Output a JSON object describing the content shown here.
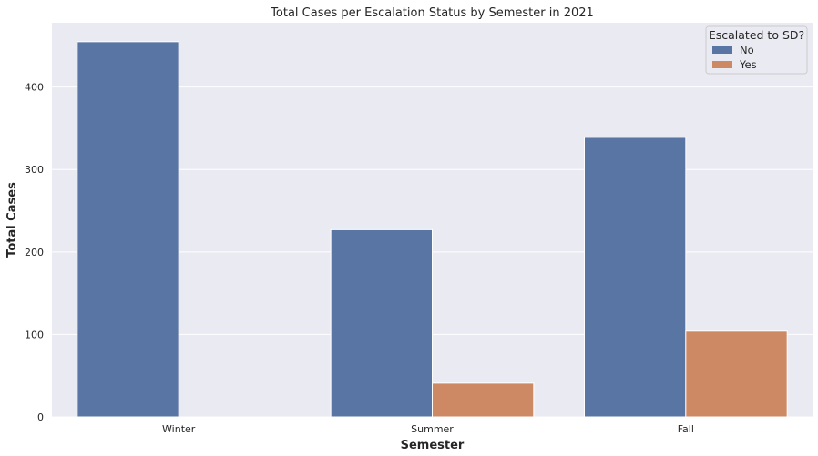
{
  "chart_data": {
    "type": "bar",
    "title": "Total Cases per Escalation Status by Semester in 2021",
    "xlabel": "Semester",
    "ylabel": "Total Cases",
    "categories": [
      "Winter",
      "Summer",
      "Fall"
    ],
    "series": [
      {
        "name": "No",
        "values": [
          455,
          227,
          339
        ],
        "color": "#5875a4"
      },
      {
        "name": "Yes",
        "values": [
          0,
          41,
          104
        ],
        "color": "#cc8963"
      }
    ],
    "ylim": [
      0,
      478
    ],
    "yticks": [
      0,
      100,
      200,
      300,
      400
    ],
    "grid": true,
    "legend": {
      "title": "Escalated to SD?",
      "position": "top-right"
    },
    "background": "#eaeaf2"
  }
}
